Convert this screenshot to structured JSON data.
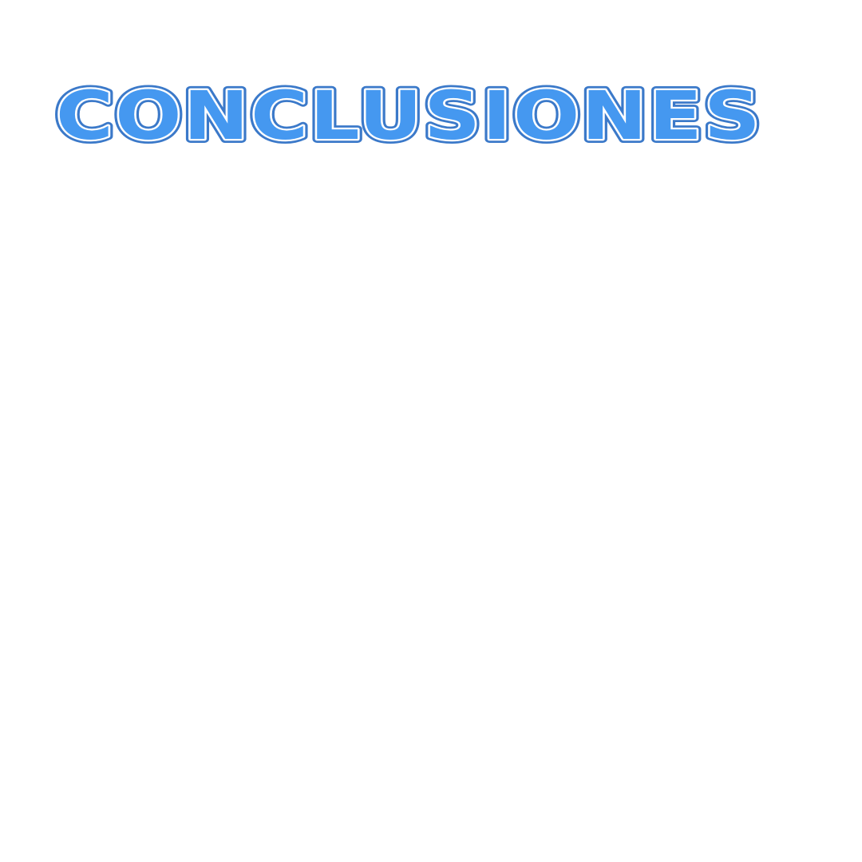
{
  "slide": {
    "title": "CONCLUSIONES"
  },
  "colors": {
    "background": "#ffffff",
    "title_fill": "#4598f0",
    "title_outline": "#3b79c9",
    "title_highlight": "#ffffff"
  }
}
